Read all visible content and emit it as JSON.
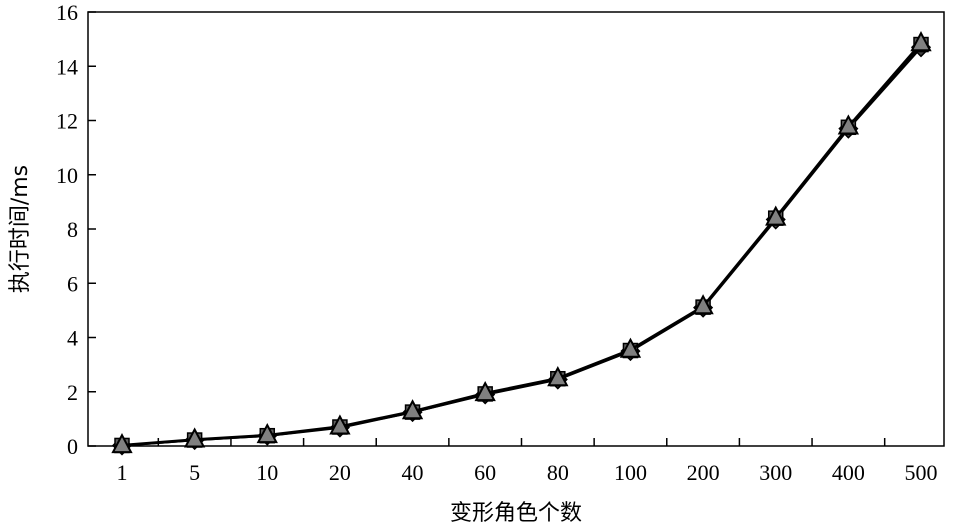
{
  "chart_data": {
    "type": "line",
    "xlabel": "变形角色个数",
    "ylabel": "执行时间/ms",
    "categories": [
      "1",
      "5",
      "10",
      "20",
      "40",
      "60",
      "80",
      "100",
      "200",
      "300",
      "400",
      "500"
    ],
    "ylim": [
      0,
      16
    ],
    "yticks": [
      0,
      2,
      4,
      6,
      8,
      10,
      12,
      14,
      16
    ],
    "grid": false,
    "series": [
      {
        "marker": "diamond",
        "color": "#000000",
        "values": [
          0.02,
          0.22,
          0.38,
          0.68,
          1.25,
          1.9,
          2.45,
          3.5,
          5.1,
          8.35,
          11.7,
          14.7
        ]
      },
      {
        "marker": "square",
        "color": "#000000",
        "values": [
          0.02,
          0.22,
          0.38,
          0.7,
          1.25,
          1.92,
          2.48,
          3.52,
          5.12,
          8.4,
          11.75,
          14.8
        ]
      },
      {
        "marker": "triangle",
        "color": "#000000",
        "fill": "#808080",
        "values": [
          0.03,
          0.24,
          0.4,
          0.72,
          1.28,
          1.95,
          2.5,
          3.55,
          5.15,
          8.42,
          11.78,
          14.85
        ]
      }
    ]
  }
}
